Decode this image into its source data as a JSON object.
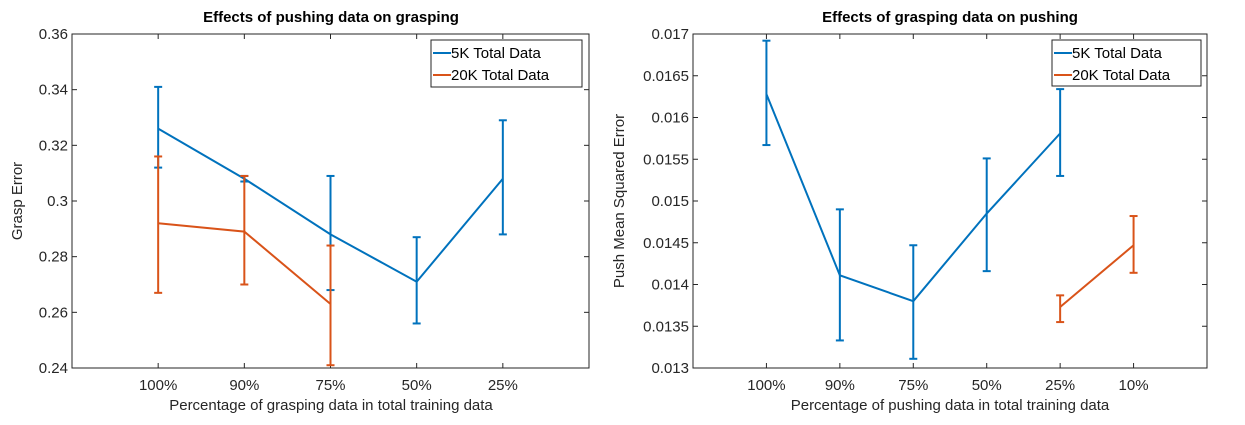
{
  "chart_data": [
    {
      "type": "line",
      "title": "Effects of pushing data on grasping",
      "xlabel": "Percentage of grasping data in total training data",
      "ylabel": "Grasp Error",
      "categories": [
        "100%",
        "90%",
        "75%",
        "50%",
        "25%"
      ],
      "xlim": [
        0,
        6
      ],
      "ylim": [
        0.24,
        0.36
      ],
      "yticks": [
        0.24,
        0.26,
        0.28,
        0.3,
        0.32,
        0.34,
        0.36
      ],
      "ytick_labels": [
        "0.24",
        "0.26",
        "0.28",
        "0.3",
        "0.32",
        "0.34",
        "0.36"
      ],
      "legend_position": "top-right",
      "grid": false,
      "series": [
        {
          "name": "5K Total Data",
          "color": "#0072BD",
          "values": [
            0.326,
            0.308,
            0.288,
            0.271,
            0.308
          ],
          "err_low": [
            0.312,
            0.307,
            0.268,
            0.256,
            0.288
          ],
          "err_high": [
            0.341,
            0.309,
            0.309,
            0.287,
            0.329
          ]
        },
        {
          "name": "20K Total Data",
          "color": "#D95319",
          "values": [
            0.292,
            0.289,
            0.263,
            null,
            null
          ],
          "err_low": [
            0.267,
            0.27,
            0.241,
            null,
            null
          ],
          "err_high": [
            0.316,
            0.309,
            0.284,
            null,
            null
          ]
        }
      ]
    },
    {
      "type": "line",
      "title": "Effects of grasping data on pushing",
      "xlabel": "Percentage of pushing data in total training data",
      "ylabel": "Push Mean Squared Error",
      "categories": [
        "100%",
        "90%",
        "75%",
        "50%",
        "25%",
        "10%"
      ],
      "xlim": [
        0,
        7
      ],
      "ylim": [
        0.013,
        0.017
      ],
      "yticks": [
        0.013,
        0.0135,
        0.014,
        0.0145,
        0.015,
        0.0155,
        0.016,
        0.0165,
        0.017
      ],
      "ytick_labels": [
        "0.013",
        "0.0135",
        "0.014",
        "0.0145",
        "0.015",
        "0.0155",
        "0.016",
        "0.0165",
        "0.017"
      ],
      "legend_position": "top-right",
      "grid": false,
      "series": [
        {
          "name": "5K Total Data",
          "color": "#0072BD",
          "values": [
            0.01628,
            0.01411,
            0.0138,
            0.01485,
            0.01581,
            null
          ],
          "err_low": [
            0.01567,
            0.01333,
            0.01311,
            0.01416,
            0.0153,
            null
          ],
          "err_high": [
            0.01692,
            0.0149,
            0.01447,
            0.01551,
            0.01634,
            null
          ]
        },
        {
          "name": "20K Total Data",
          "color": "#D95319",
          "values": [
            null,
            null,
            null,
            null,
            0.01373,
            0.01447
          ],
          "err_low": [
            null,
            null,
            null,
            null,
            0.01355,
            0.01414
          ],
          "err_high": [
            null,
            null,
            null,
            null,
            0.01387,
            0.01482
          ]
        }
      ]
    }
  ]
}
